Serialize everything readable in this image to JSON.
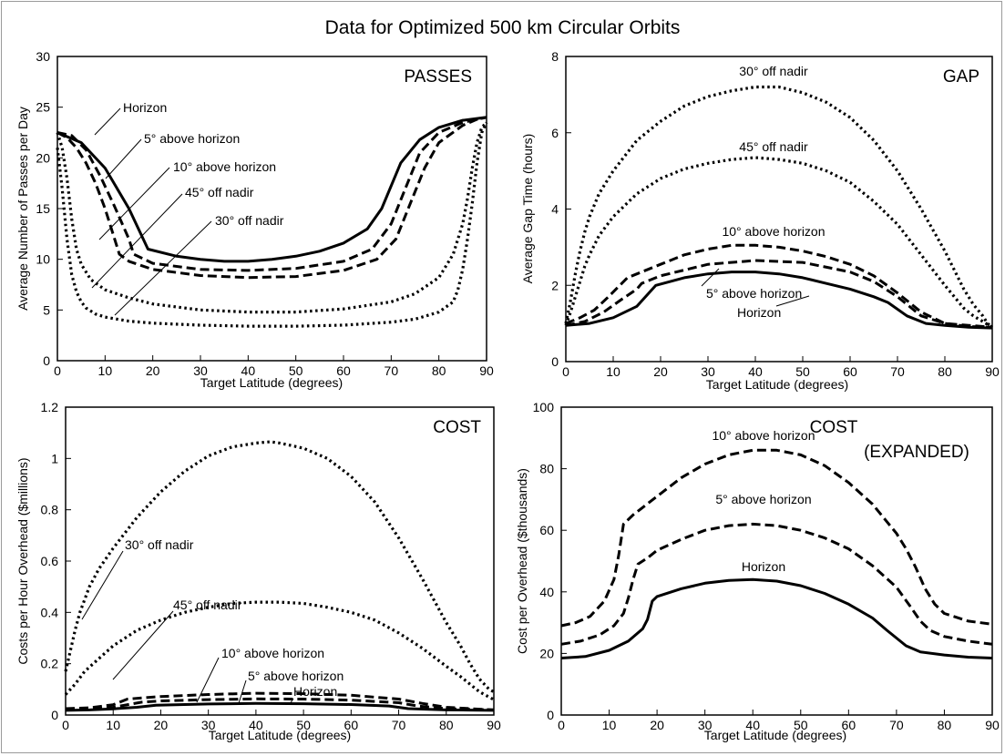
{
  "figure": {
    "title": "Data for Optimized 500 km Circular Orbits"
  },
  "chart_data": [
    {
      "id": "passes",
      "type": "line",
      "title": "PASSES",
      "xlabel": "Target Latitude (degrees)",
      "ylabel": "Average Number of Passes per Day",
      "xlim": [
        0,
        90
      ],
      "ylim": [
        0,
        30
      ],
      "xticks": [
        0,
        10,
        20,
        30,
        40,
        50,
        60,
        70,
        80,
        90
      ],
      "yticks": [
        0,
        5,
        10,
        15,
        20,
        25,
        30
      ],
      "grid": false,
      "series": [
        {
          "name": "Horizon",
          "style": "solid",
          "x": [
            0,
            5,
            10,
            15,
            19,
            25,
            30,
            35,
            40,
            45,
            50,
            55,
            60,
            65,
            68,
            72,
            76,
            80,
            85,
            90
          ],
          "y": [
            22.5,
            21.5,
            19,
            15,
            11,
            10.3,
            10,
            9.8,
            9.8,
            10,
            10.3,
            10.8,
            11.6,
            13,
            15,
            19.5,
            21.8,
            23,
            23.7,
            24
          ]
        },
        {
          "name": "5° above horizon",
          "style": "dash",
          "x": [
            0,
            3,
            6,
            9,
            12,
            15,
            16,
            20,
            30,
            40,
            50,
            60,
            66,
            70,
            73,
            76,
            80,
            85,
            90
          ],
          "y": [
            22.5,
            22.2,
            20.8,
            18.2,
            15.2,
            12,
            10.5,
            9.6,
            9,
            8.9,
            9.1,
            9.8,
            11,
            13.5,
            17,
            20.5,
            22.5,
            23.5,
            24
          ]
        },
        {
          "name": "10° above horizon",
          "style": "dash",
          "x": [
            0,
            2,
            4,
            6,
            8,
            10,
            12,
            13,
            15,
            20,
            30,
            40,
            50,
            60,
            67,
            71,
            74,
            77,
            80,
            85,
            88,
            90
          ],
          "y": [
            22.5,
            22,
            21,
            19.5,
            17.5,
            15,
            12,
            10.5,
            9.8,
            9,
            8.4,
            8.2,
            8.3,
            8.9,
            10,
            12,
            15.5,
            19,
            21.5,
            23.2,
            23.8,
            24
          ]
        },
        {
          "name": "45° off nadir",
          "style": "dot",
          "x": [
            0,
            1,
            2,
            3,
            4,
            5,
            7,
            10,
            15,
            20,
            30,
            40,
            50,
            60,
            70,
            75,
            80,
            83,
            85,
            86,
            87,
            88,
            89,
            90
          ],
          "y": [
            22.5,
            21,
            18,
            14,
            11,
            9.5,
            8,
            7,
            6.2,
            5.6,
            5,
            4.8,
            4.8,
            5.1,
            5.8,
            6.6,
            8.2,
            10.5,
            13.5,
            16,
            19,
            21.5,
            23,
            23.5
          ]
        },
        {
          "name": "30° off nadir",
          "style": "dot",
          "x": [
            0,
            1,
            2,
            3,
            4,
            5,
            6,
            8,
            10,
            15,
            20,
            30,
            40,
            50,
            60,
            70,
            75,
            80,
            83,
            84,
            85,
            86,
            87,
            88,
            89,
            90
          ],
          "y": [
            21,
            17,
            12,
            8.5,
            6.8,
            5.8,
            5.2,
            4.6,
            4.3,
            3.9,
            3.7,
            3.5,
            3.4,
            3.4,
            3.5,
            3.8,
            4.1,
            4.8,
            5.8,
            7,
            9,
            12,
            15.5,
            19.5,
            22.5,
            23.5
          ]
        }
      ],
      "annotations": [
        "Horizon",
        "5° above horizon",
        "10° above horizon",
        "45° off nadir",
        "30° off nadir"
      ]
    },
    {
      "id": "gap",
      "type": "line",
      "title": "GAP",
      "xlabel": "Target Latitude (degrees)",
      "ylabel": "Average Gap Time (hours)",
      "xlim": [
        0,
        90
      ],
      "ylim": [
        0,
        8
      ],
      "xticks": [
        0,
        10,
        20,
        30,
        40,
        50,
        60,
        70,
        80,
        90
      ],
      "yticks": [
        0,
        2,
        4,
        6,
        8
      ],
      "grid": false,
      "series": [
        {
          "name": "30° off nadir",
          "style": "dot",
          "x": [
            0,
            1,
            2,
            3,
            4,
            5,
            7,
            10,
            15,
            20,
            25,
            30,
            35,
            40,
            43,
            45,
            50,
            55,
            60,
            65,
            70,
            75,
            80,
            82,
            84,
            86,
            88,
            89,
            90
          ],
          "y": [
            1.0,
            1.6,
            2.3,
            2.9,
            3.4,
            3.8,
            4.4,
            5.0,
            5.8,
            6.3,
            6.7,
            6.95,
            7.1,
            7.2,
            7.2,
            7.2,
            7.05,
            6.8,
            6.4,
            5.8,
            5.0,
            4.0,
            2.9,
            2.4,
            1.9,
            1.5,
            1.2,
            1.0,
            0.9
          ]
        },
        {
          "name": "45° off nadir",
          "style": "dot",
          "x": [
            0,
            1,
            2,
            3,
            4,
            5,
            7,
            10,
            15,
            20,
            25,
            30,
            35,
            40,
            45,
            50,
            55,
            60,
            65,
            70,
            75,
            80,
            82,
            84,
            86,
            88,
            90
          ],
          "y": [
            0.95,
            1.3,
            1.7,
            2.1,
            2.5,
            2.8,
            3.3,
            3.8,
            4.4,
            4.8,
            5.05,
            5.2,
            5.3,
            5.35,
            5.3,
            5.2,
            5.0,
            4.7,
            4.2,
            3.6,
            2.8,
            2.0,
            1.7,
            1.4,
            1.2,
            1.05,
            0.9
          ]
        },
        {
          "name": "10° above horizon",
          "style": "dash",
          "x": [
            0,
            3,
            6,
            9,
            11,
            13,
            20,
            25,
            30,
            35,
            40,
            45,
            50,
            55,
            60,
            65,
            70,
            75,
            80,
            85,
            90
          ],
          "y": [
            1.0,
            1.15,
            1.35,
            1.7,
            1.95,
            2.2,
            2.55,
            2.8,
            2.95,
            3.05,
            3.05,
            3.0,
            2.9,
            2.75,
            2.55,
            2.25,
            1.8,
            1.3,
            1.0,
            0.95,
            0.9
          ]
        },
        {
          "name": "5° above horizon",
          "style": "dash",
          "x": [
            0,
            4,
            8,
            12,
            15,
            16,
            20,
            30,
            40,
            50,
            60,
            65,
            70,
            75,
            80,
            85,
            90
          ],
          "y": [
            0.95,
            1.05,
            1.3,
            1.65,
            1.9,
            2.05,
            2.25,
            2.55,
            2.65,
            2.6,
            2.35,
            2.1,
            1.7,
            1.2,
            1.0,
            0.92,
            0.9
          ]
        },
        {
          "name": "Horizon",
          "style": "solid",
          "x": [
            0,
            5,
            10,
            15,
            19,
            25,
            30,
            35,
            40,
            45,
            50,
            55,
            60,
            65,
            68,
            72,
            76,
            80,
            85,
            90
          ],
          "y": [
            0.95,
            1.0,
            1.15,
            1.45,
            2.0,
            2.2,
            2.3,
            2.35,
            2.35,
            2.3,
            2.2,
            2.05,
            1.9,
            1.7,
            1.55,
            1.2,
            1.0,
            0.95,
            0.9,
            0.88
          ]
        }
      ],
      "annotations": [
        "30° off nadir",
        "45° off nadir",
        "10° above horizon",
        "5° above horizon",
        "Horizon"
      ]
    },
    {
      "id": "cost",
      "type": "line",
      "title": "COST",
      "xlabel": "Target Latitude (degrees)",
      "ylabel": "Costs per Hour Overhead ($millions)",
      "xlim": [
        0,
        90
      ],
      "ylim": [
        0,
        1.2
      ],
      "xticks": [
        0,
        10,
        20,
        30,
        40,
        50,
        60,
        70,
        80,
        90
      ],
      "yticks": [
        0,
        0.2,
        0.4,
        0.6,
        0.8,
        1.0,
        1.2
      ],
      "grid": false,
      "series": [
        {
          "name": "30° off nadir",
          "style": "dot",
          "x": [
            0,
            1,
            2,
            3,
            4,
            5,
            7,
            10,
            15,
            20,
            25,
            30,
            35,
            40,
            43,
            45,
            50,
            55,
            60,
            65,
            70,
            75,
            80,
            83,
            85,
            87,
            89,
            90
          ],
          "y": [
            0.17,
            0.25,
            0.33,
            0.4,
            0.45,
            0.5,
            0.57,
            0.65,
            0.77,
            0.87,
            0.95,
            1.01,
            1.045,
            1.06,
            1.065,
            1.06,
            1.04,
            1.0,
            0.93,
            0.83,
            0.69,
            0.53,
            0.36,
            0.27,
            0.2,
            0.14,
            0.1,
            0.09
          ]
        },
        {
          "name": "45° off nadir",
          "style": "dot",
          "x": [
            0,
            2,
            4,
            7,
            10,
            15,
            20,
            25,
            30,
            35,
            40,
            45,
            50,
            55,
            60,
            65,
            70,
            75,
            80,
            83,
            85,
            87,
            89,
            90
          ],
          "y": [
            0.08,
            0.12,
            0.17,
            0.22,
            0.27,
            0.33,
            0.37,
            0.4,
            0.42,
            0.435,
            0.44,
            0.44,
            0.435,
            0.42,
            0.4,
            0.37,
            0.32,
            0.26,
            0.19,
            0.15,
            0.12,
            0.09,
            0.07,
            0.06
          ]
        },
        {
          "name": "10° above horizon",
          "style": "dash",
          "x": [
            0,
            5,
            10,
            13,
            20,
            30,
            40,
            50,
            60,
            70,
            75,
            80,
            85,
            90
          ],
          "y": [
            0.025,
            0.028,
            0.04,
            0.062,
            0.072,
            0.08,
            0.085,
            0.083,
            0.077,
            0.062,
            0.045,
            0.03,
            0.025,
            0.02
          ]
        },
        {
          "name": "5° above horizon",
          "style": "dash",
          "x": [
            0,
            5,
            10,
            16,
            20,
            30,
            40,
            50,
            60,
            70,
            74,
            80,
            85,
            90
          ],
          "y": [
            0.022,
            0.024,
            0.03,
            0.05,
            0.055,
            0.06,
            0.063,
            0.062,
            0.058,
            0.048,
            0.035,
            0.025,
            0.022,
            0.02
          ]
        },
        {
          "name": "Horizon",
          "style": "solid",
          "x": [
            0,
            5,
            10,
            15,
            19,
            25,
            30,
            40,
            50,
            60,
            68,
            72,
            80,
            85,
            90
          ],
          "y": [
            0.018,
            0.02,
            0.024,
            0.03,
            0.038,
            0.041,
            0.043,
            0.045,
            0.044,
            0.041,
            0.035,
            0.025,
            0.02,
            0.019,
            0.018
          ]
        }
      ],
      "annotations": [
        "30° off nadir",
        "45° off nadir",
        "10° above horizon",
        "5° above horizon",
        "Horizon"
      ]
    },
    {
      "id": "cost-expanded",
      "type": "line",
      "title": "COST",
      "title_line2": "(EXPANDED)",
      "xlabel": "Target Latitude (degrees)",
      "ylabel": "Cost per Overhead ($thousands)",
      "xlim": [
        0,
        90
      ],
      "ylim": [
        0,
        100
      ],
      "xticks": [
        0,
        10,
        20,
        30,
        40,
        50,
        60,
        70,
        80,
        90
      ],
      "yticks": [
        0,
        20,
        40,
        60,
        80,
        100
      ],
      "grid": false,
      "series": [
        {
          "name": "10° above horizon",
          "style": "dash",
          "x": [
            0,
            3,
            6,
            9,
            11,
            12,
            13,
            15,
            20,
            25,
            30,
            35,
            40,
            45,
            50,
            55,
            60,
            65,
            70,
            72,
            74,
            76,
            78,
            80,
            85,
            90
          ],
          "y": [
            29,
            30,
            32,
            37,
            44,
            52,
            62,
            65,
            71,
            77,
            81.5,
            84.5,
            86,
            86,
            84.5,
            81,
            75.5,
            68.5,
            59,
            54,
            48,
            41,
            36,
            33,
            30.5,
            29.5
          ]
        },
        {
          "name": "5° above horizon",
          "style": "dash",
          "x": [
            0,
            4,
            8,
            11,
            13,
            14,
            15,
            16,
            18,
            20,
            25,
            30,
            35,
            40,
            45,
            50,
            55,
            60,
            65,
            70,
            73,
            75,
            77,
            80,
            85,
            90
          ],
          "y": [
            23,
            24,
            26,
            29,
            33,
            38,
            44,
            49,
            51,
            53.5,
            57,
            60,
            61.5,
            62,
            61.5,
            60,
            57.5,
            54,
            48.5,
            41.5,
            35,
            30.5,
            27.5,
            25.5,
            24,
            23
          ]
        },
        {
          "name": "Horizon",
          "style": "solid",
          "x": [
            0,
            5,
            10,
            14,
            17,
            18,
            19,
            20,
            25,
            30,
            35,
            40,
            45,
            50,
            55,
            60,
            65,
            68,
            70,
            72,
            75,
            80,
            85,
            90
          ],
          "y": [
            18.5,
            19,
            21,
            24,
            28,
            31,
            37,
            38.5,
            41,
            42.8,
            43.7,
            44,
            43.5,
            42,
            39.5,
            36,
            31.5,
            27.5,
            25,
            22.5,
            20.5,
            19.5,
            18.8,
            18.5
          ]
        }
      ],
      "annotations": [
        "10° above horizon",
        "5° above horizon",
        "Horizon"
      ]
    }
  ]
}
